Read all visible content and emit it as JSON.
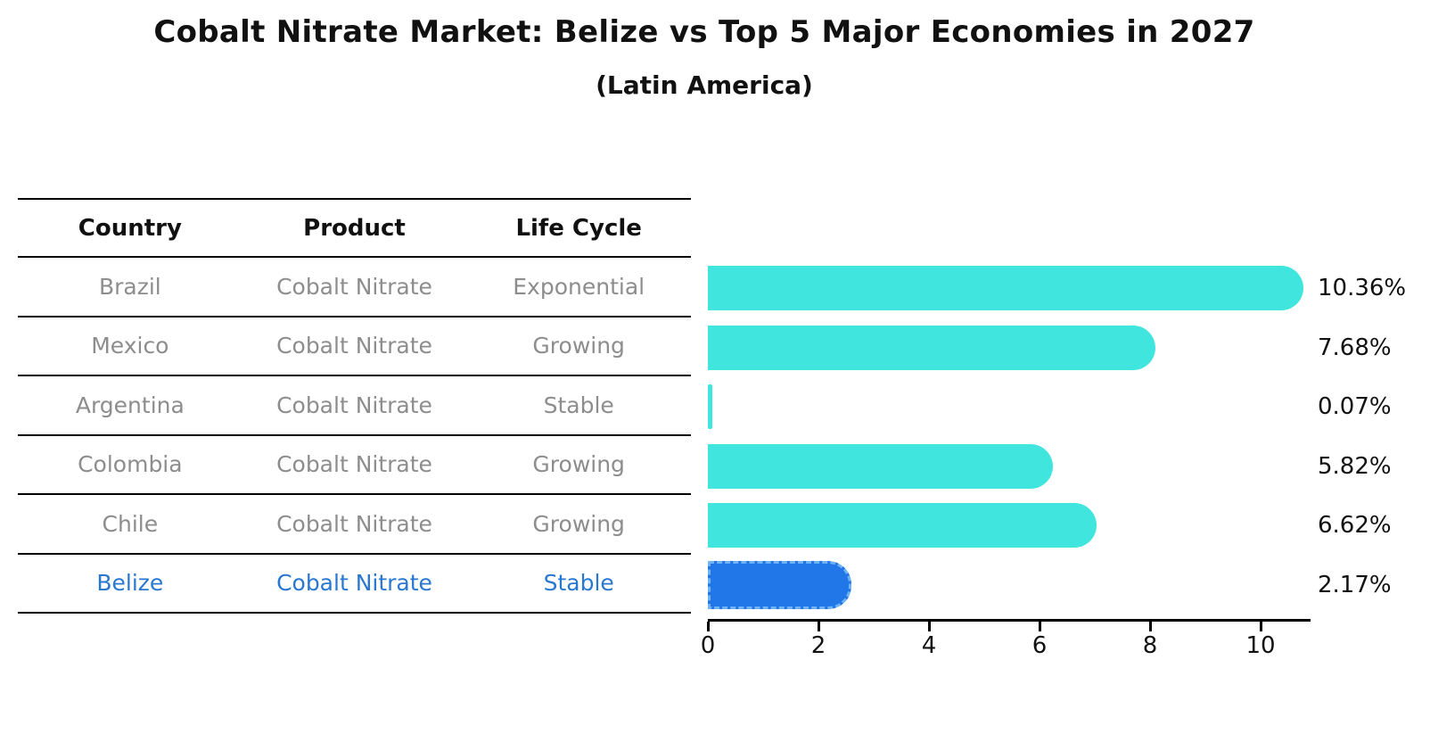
{
  "chart_data": {
    "type": "bar",
    "orientation": "horizontal",
    "title": "Cobalt Nitrate Market: Belize vs Top 5 Major Economies in 2027",
    "subtitle": "(Latin America)",
    "categories": [
      "Brazil",
      "Mexico",
      "Argentina",
      "Colombia",
      "Chile",
      "Belize"
    ],
    "values": [
      10.36,
      7.68,
      0.07,
      5.82,
      6.62,
      2.17
    ],
    "value_labels": [
      "10.36%",
      "7.68%",
      "0.07%",
      "5.82%",
      "6.62%",
      "2.17%"
    ],
    "x_ticks": [
      "0",
      "2",
      "4",
      "6",
      "8",
      "10"
    ],
    "x_tick_values": [
      0,
      2,
      4,
      6,
      8,
      10
    ],
    "xlim": [
      0,
      10.9
    ],
    "grid": false,
    "legend": false,
    "highlight_index": 5,
    "ylabel": "",
    "xlabel": ""
  },
  "table": {
    "headers": [
      "Country",
      "Product",
      "Life Cycle"
    ],
    "rows": [
      {
        "country": "Brazil",
        "product": "Cobalt Nitrate",
        "life_cycle": "Exponential",
        "highlighted": false
      },
      {
        "country": "Mexico",
        "product": "Cobalt Nitrate",
        "life_cycle": "Growing",
        "highlighted": false
      },
      {
        "country": "Argentina",
        "product": "Cobalt Nitrate",
        "life_cycle": "Stable",
        "highlighted": false
      },
      {
        "country": "Colombia",
        "product": "Cobalt Nitrate",
        "life_cycle": "Growing",
        "highlighted": false
      },
      {
        "country": "Chile",
        "product": "Cobalt Nitrate",
        "life_cycle": "Growing",
        "highlighted": false
      },
      {
        "country": "Belize",
        "product": "Cobalt Nitrate",
        "life_cycle": "Stable",
        "highlighted": true
      }
    ]
  },
  "colors": {
    "bar": "#40e5de",
    "highlight_bar": "#2177e8",
    "highlight_border": "#6fb2f5",
    "table_text": "#8d8d8d",
    "highlight_text": "#2878d2",
    "header_text": "#111111",
    "value_text": "#111111",
    "axis": "#000000"
  }
}
